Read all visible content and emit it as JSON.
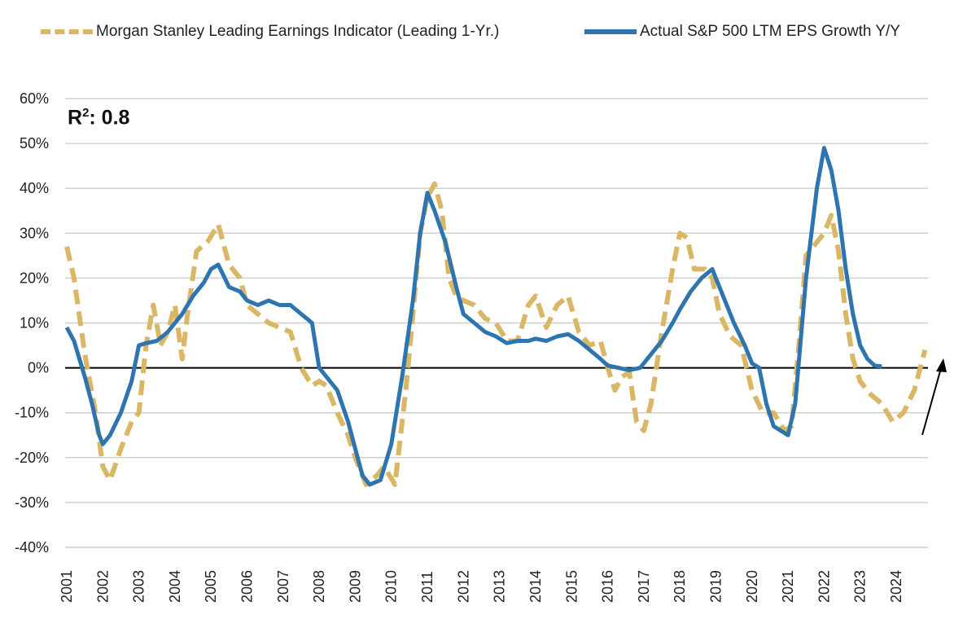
{
  "chart_data": {
    "type": "line",
    "title": "",
    "xlabel": "",
    "ylabel": "",
    "ylim": [
      -40,
      60
    ],
    "xlim": [
      2001,
      2025
    ],
    "y_ticks": [
      "60%",
      "50%",
      "40%",
      "30%",
      "20%",
      "10%",
      "0%",
      "-10%",
      "-20%",
      "-30%",
      "-40%"
    ],
    "y_tick_values": [
      60,
      50,
      40,
      30,
      20,
      10,
      0,
      -10,
      -20,
      -30,
      -40
    ],
    "x_ticks": [
      "2001",
      "2002",
      "2003",
      "2004",
      "2005",
      "2006",
      "2007",
      "2008",
      "2009",
      "2010",
      "2011",
      "2012",
      "2013",
      "2014",
      "2015",
      "2016",
      "2017",
      "2018",
      "2019",
      "2020",
      "2021",
      "2022",
      "2023",
      "2024"
    ],
    "annotation": {
      "prefix": "R",
      "superscript": "2",
      "suffix": ": 0.8"
    },
    "legend_position": "top",
    "grid": true,
    "colors": {
      "leading": "#d9b765",
      "actual": "#2e75b0",
      "grid": "#d0d0d0",
      "zero": "#000000"
    },
    "series": [
      {
        "name": "Morgan Stanley Leading Earnings Indicator (Leading 1-Yr.)",
        "style": "dashed",
        "points": [
          [
            2001.0,
            27
          ],
          [
            2001.2,
            20
          ],
          [
            2001.5,
            3
          ],
          [
            2001.8,
            -10
          ],
          [
            2002.0,
            -22
          ],
          [
            2002.2,
            -25
          ],
          [
            2002.5,
            -18
          ],
          [
            2002.8,
            -12
          ],
          [
            2003.0,
            -10
          ],
          [
            2003.2,
            5
          ],
          [
            2003.4,
            14
          ],
          [
            2003.6,
            5
          ],
          [
            2003.8,
            8
          ],
          [
            2004.0,
            14
          ],
          [
            2004.2,
            2
          ],
          [
            2004.35,
            12
          ],
          [
            2004.6,
            26
          ],
          [
            2004.9,
            28
          ],
          [
            2005.2,
            32
          ],
          [
            2005.5,
            23
          ],
          [
            2005.8,
            20
          ],
          [
            2006.0,
            14
          ],
          [
            2006.3,
            12
          ],
          [
            2006.6,
            10
          ],
          [
            2006.9,
            9
          ],
          [
            2007.2,
            8
          ],
          [
            2007.5,
            0
          ],
          [
            2007.8,
            -4
          ],
          [
            2008.0,
            -3
          ],
          [
            2008.2,
            -4
          ],
          [
            2008.5,
            -10
          ],
          [
            2008.8,
            -15
          ],
          [
            2009.0,
            -20
          ],
          [
            2009.3,
            -26
          ],
          [
            2009.6,
            -24
          ],
          [
            2009.8,
            -22
          ],
          [
            2010.1,
            -26
          ],
          [
            2010.4,
            -5
          ],
          [
            2010.6,
            12
          ],
          [
            2010.8,
            30
          ],
          [
            2011.0,
            38
          ],
          [
            2011.2,
            41
          ],
          [
            2011.4,
            35
          ],
          [
            2011.6,
            20
          ],
          [
            2011.8,
            16
          ],
          [
            2012.0,
            15
          ],
          [
            2012.3,
            14
          ],
          [
            2012.6,
            11
          ],
          [
            2012.9,
            10
          ],
          [
            2013.2,
            6
          ],
          [
            2013.5,
            6
          ],
          [
            2013.8,
            14
          ],
          [
            2014.0,
            16
          ],
          [
            2014.3,
            9
          ],
          [
            2014.6,
            14
          ],
          [
            2014.9,
            16
          ],
          [
            2015.2,
            8
          ],
          [
            2015.5,
            5
          ],
          [
            2015.8,
            6
          ],
          [
            2016.0,
            0
          ],
          [
            2016.2,
            -5
          ],
          [
            2016.4,
            -2
          ],
          [
            2016.6,
            -1
          ],
          [
            2016.8,
            -12
          ],
          [
            2017.0,
            -14
          ],
          [
            2017.2,
            -8
          ],
          [
            2017.5,
            8
          ],
          [
            2017.8,
            22
          ],
          [
            2018.0,
            30
          ],
          [
            2018.2,
            29
          ],
          [
            2018.4,
            22
          ],
          [
            2018.7,
            22
          ],
          [
            2018.9,
            20
          ],
          [
            2019.1,
            12
          ],
          [
            2019.4,
            7
          ],
          [
            2019.7,
            5
          ],
          [
            2020.0,
            -5
          ],
          [
            2020.3,
            -10
          ],
          [
            2020.6,
            -10
          ],
          [
            2020.9,
            -14
          ],
          [
            2021.1,
            -13
          ],
          [
            2021.3,
            5
          ],
          [
            2021.5,
            25
          ],
          [
            2021.8,
            28
          ],
          [
            2022.0,
            30
          ],
          [
            2022.2,
            34
          ],
          [
            2022.4,
            26
          ],
          [
            2022.6,
            12
          ],
          [
            2022.8,
            2
          ],
          [
            2023.0,
            -3
          ],
          [
            2023.3,
            -6
          ],
          [
            2023.6,
            -8
          ],
          [
            2023.9,
            -12
          ],
          [
            2024.2,
            -10
          ],
          [
            2024.5,
            -5
          ],
          [
            2024.8,
            4
          ]
        ]
      },
      {
        "name": "Actual S&P 500 LTM EPS Growth Y/Y",
        "style": "solid",
        "points": [
          [
            2001.0,
            9
          ],
          [
            2001.2,
            6
          ],
          [
            2001.5,
            -2
          ],
          [
            2001.7,
            -8
          ],
          [
            2001.9,
            -15
          ],
          [
            2002.0,
            -17
          ],
          [
            2002.2,
            -15
          ],
          [
            2002.5,
            -10
          ],
          [
            2002.8,
            -3
          ],
          [
            2003.0,
            5
          ],
          [
            2003.2,
            5.5
          ],
          [
            2003.5,
            6
          ],
          [
            2003.8,
            8
          ],
          [
            2004.0,
            10
          ],
          [
            2004.2,
            12
          ],
          [
            2004.5,
            16
          ],
          [
            2004.8,
            19
          ],
          [
            2005.0,
            22
          ],
          [
            2005.2,
            23
          ],
          [
            2005.5,
            18
          ],
          [
            2005.8,
            17
          ],
          [
            2006.0,
            15
          ],
          [
            2006.3,
            14
          ],
          [
            2006.6,
            15
          ],
          [
            2006.9,
            14
          ],
          [
            2007.2,
            14
          ],
          [
            2007.5,
            12
          ],
          [
            2007.8,
            10
          ],
          [
            2008.0,
            0
          ],
          [
            2008.2,
            -2
          ],
          [
            2008.5,
            -5
          ],
          [
            2008.8,
            -12
          ],
          [
            2009.0,
            -18
          ],
          [
            2009.2,
            -24
          ],
          [
            2009.4,
            -26
          ],
          [
            2009.7,
            -25
          ],
          [
            2010.0,
            -17
          ],
          [
            2010.3,
            -2
          ],
          [
            2010.6,
            15
          ],
          [
            2010.8,
            30
          ],
          [
            2011.0,
            39
          ],
          [
            2011.2,
            35
          ],
          [
            2011.5,
            28
          ],
          [
            2011.8,
            18
          ],
          [
            2012.0,
            12
          ],
          [
            2012.3,
            10
          ],
          [
            2012.6,
            8
          ],
          [
            2012.9,
            7
          ],
          [
            2013.2,
            5.5
          ],
          [
            2013.5,
            6
          ],
          [
            2013.8,
            6
          ],
          [
            2014.0,
            6.5
          ],
          [
            2014.3,
            6
          ],
          [
            2014.6,
            7
          ],
          [
            2014.9,
            7.5
          ],
          [
            2015.2,
            6
          ],
          [
            2015.5,
            4
          ],
          [
            2015.8,
            2
          ],
          [
            2016.0,
            0.5
          ],
          [
            2016.3,
            0
          ],
          [
            2016.6,
            -0.5
          ],
          [
            2016.9,
            0
          ],
          [
            2017.2,
            3
          ],
          [
            2017.5,
            6
          ],
          [
            2017.8,
            10
          ],
          [
            2018.0,
            13
          ],
          [
            2018.3,
            17
          ],
          [
            2018.6,
            20
          ],
          [
            2018.9,
            22
          ],
          [
            2019.2,
            16
          ],
          [
            2019.5,
            10
          ],
          [
            2019.8,
            5
          ],
          [
            2020.0,
            1
          ],
          [
            2020.2,
            0
          ],
          [
            2020.4,
            -8
          ],
          [
            2020.6,
            -13
          ],
          [
            2020.8,
            -14
          ],
          [
            2021.0,
            -15
          ],
          [
            2021.2,
            -8
          ],
          [
            2021.5,
            20
          ],
          [
            2021.8,
            40
          ],
          [
            2022.0,
            49
          ],
          [
            2022.2,
            44
          ],
          [
            2022.4,
            35
          ],
          [
            2022.6,
            22
          ],
          [
            2022.8,
            12
          ],
          [
            2023.0,
            5
          ],
          [
            2023.2,
            2
          ],
          [
            2023.4,
            0.5
          ],
          [
            2023.6,
            0.3
          ]
        ]
      }
    ]
  }
}
